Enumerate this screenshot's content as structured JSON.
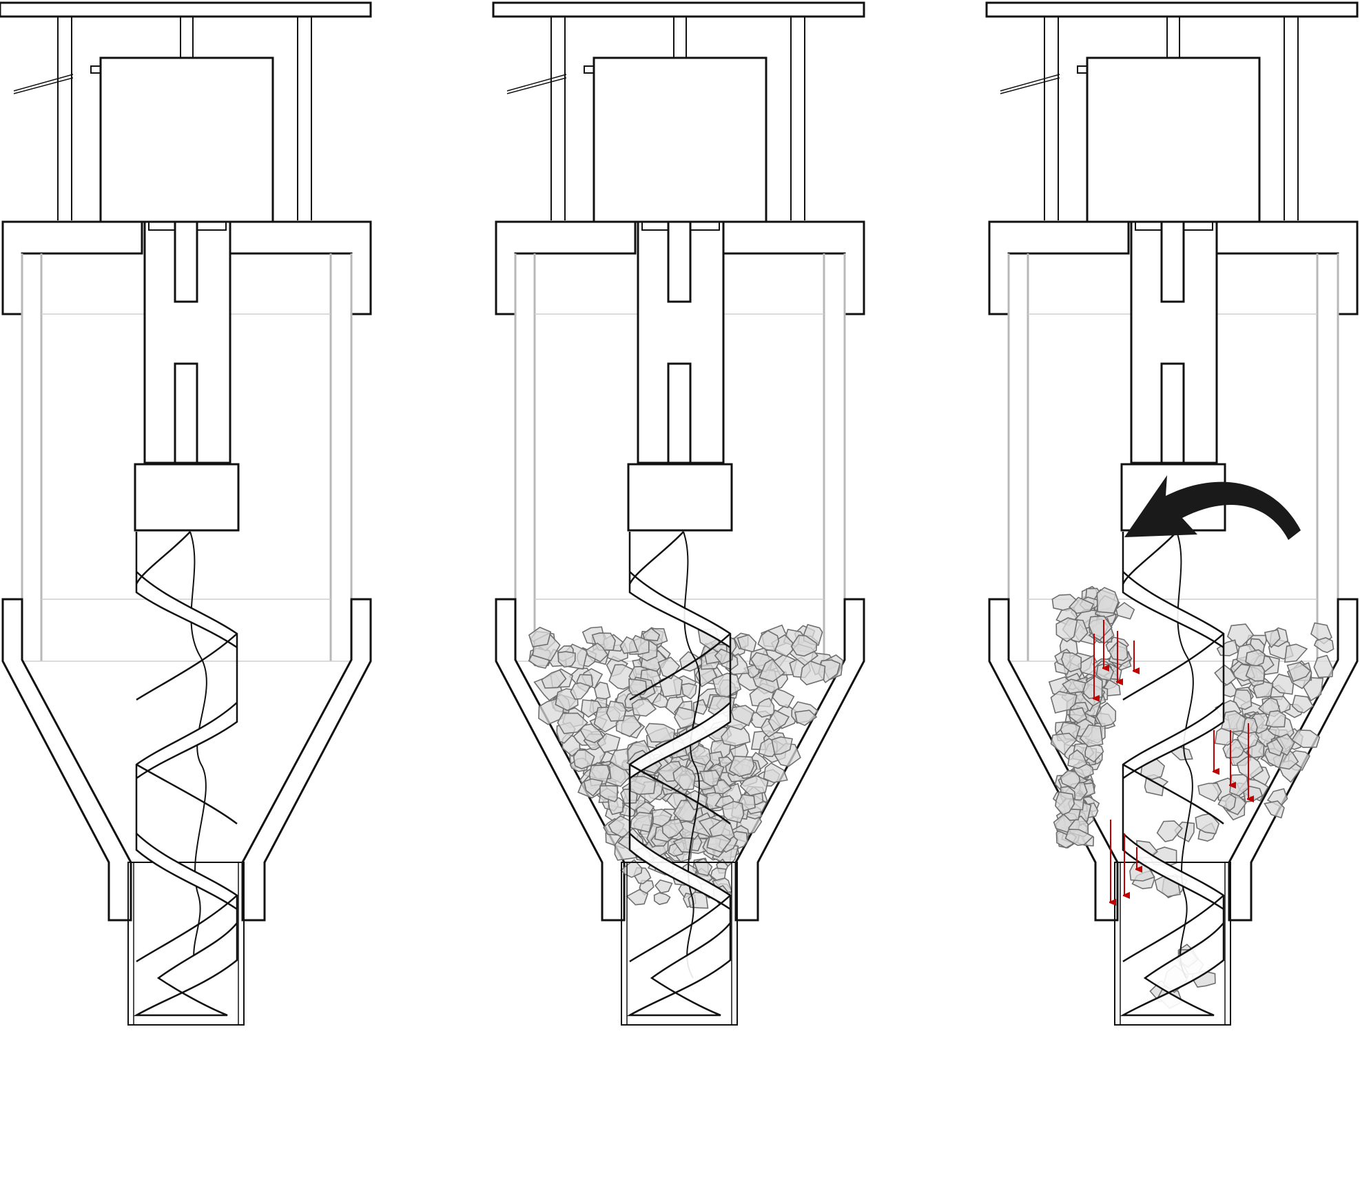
{
  "diagram": {
    "panels": [
      {
        "id": "empty",
        "fill_state": "empty",
        "rotating": false,
        "material_falling": false
      },
      {
        "id": "filled",
        "fill_state": "filled",
        "rotating": false,
        "material_falling": false
      },
      {
        "id": "dispensing",
        "fill_state": "partially-emptied",
        "rotating": true,
        "material_falling": true
      }
    ],
    "colors": {
      "outline": "#111111",
      "glass": "#b8b8b8",
      "material_fill": "#d9d9d9",
      "material_stroke": "#6e6e6e",
      "flow_arrow": "#c00000",
      "rotation_arrow": "#1a1a1a"
    },
    "icons": {
      "rotation": "counterclockwise-rotation-arrow-icon",
      "flow": "downward-flow-arrow-icon"
    }
  }
}
